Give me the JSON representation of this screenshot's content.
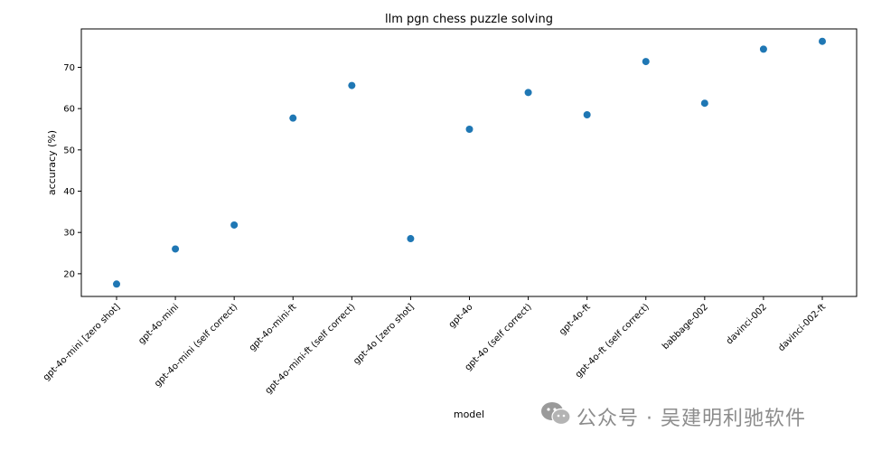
{
  "chart_data": {
    "type": "scatter",
    "title": "llm pgn chess puzzle solving",
    "xlabel": "model",
    "ylabel": "accuracy (%)",
    "categories": [
      "gpt-4o-mini [zero shot]",
      "gpt-4o-mini",
      "gpt-4o-mini (self correct)",
      "gpt-4o-mini-ft",
      "gpt-4o-mini-ft (self correct)",
      "gpt-4o [zero shot]",
      "gpt-4o",
      "gpt-4o (self correct)",
      "gpt-4o-ft",
      "gpt-4o-ft (self correct)",
      "babbage-002",
      "davinci-002",
      "davinci-002-ft"
    ],
    "values": [
      17.5,
      26.0,
      31.8,
      57.7,
      65.6,
      28.5,
      55.0,
      63.9,
      58.5,
      71.4,
      61.3,
      74.4,
      76.3
    ],
    "yticks": [
      20,
      30,
      40,
      50,
      60,
      70
    ],
    "ylim": [
      14.5,
      79.3
    ],
    "grid": false,
    "legend": "none",
    "color": "#1f77b4"
  },
  "watermark": {
    "text": "公众号 · 吴建明利驰软件",
    "icon": "wechat-icon"
  }
}
